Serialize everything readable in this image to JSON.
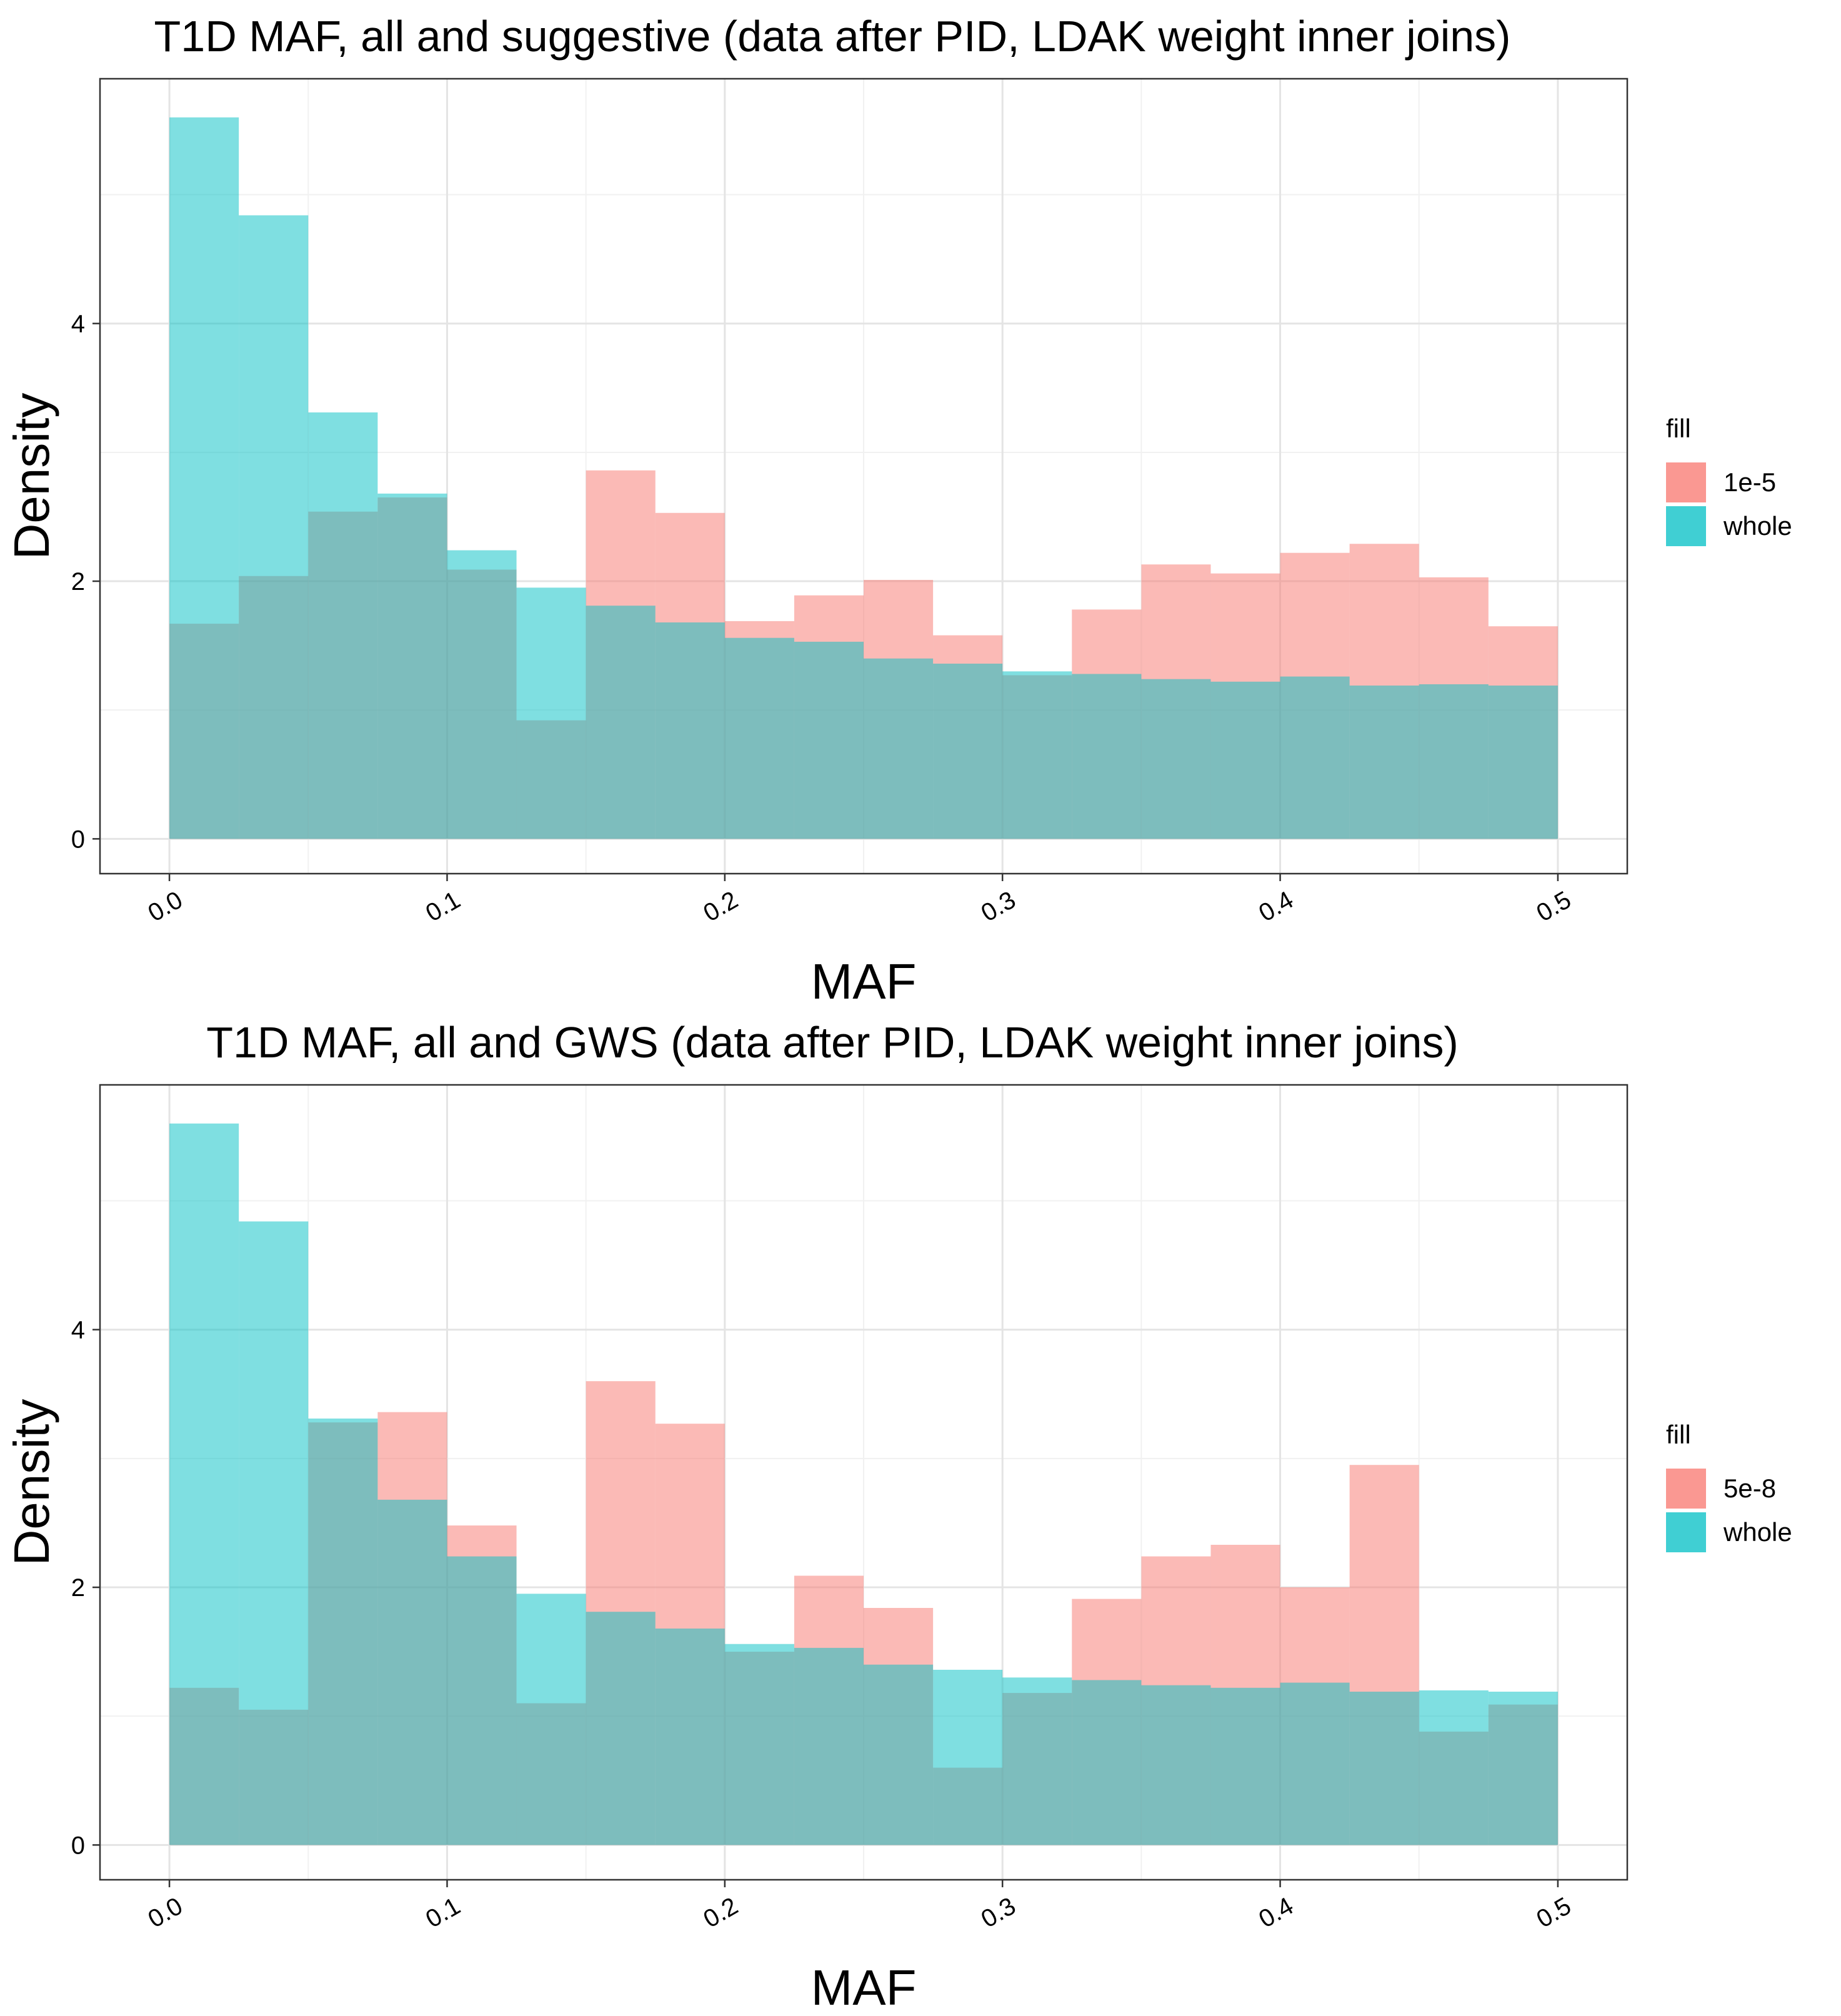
{
  "chart_data": [
    {
      "type": "histogram",
      "title": "T1D MAF, all and suggestive (data after PID, LDAK weight inner joins)",
      "xlabel": "MAF",
      "ylabel": "Density",
      "xlim": [
        -0.025,
        0.525
      ],
      "ylim": [
        -0.27,
        5.9
      ],
      "x_ticks": [
        "0.0",
        "0.1",
        "0.2",
        "0.3",
        "0.4",
        "0.5"
      ],
      "y_ticks": [
        "0",
        "2",
        "4"
      ],
      "bin_edges": [
        0,
        0.025,
        0.05,
        0.075,
        0.1,
        0.125,
        0.15,
        0.175,
        0.2,
        0.225,
        0.25,
        0.275,
        0.3,
        0.325,
        0.35,
        0.375,
        0.4,
        0.425,
        0.45,
        0.475,
        0.5
      ],
      "legend": {
        "title": "fill",
        "position": "right"
      },
      "series": [
        {
          "name": "1e-5",
          "color": "#F8766D",
          "values": [
            1.67,
            2.04,
            2.54,
            2.65,
            2.09,
            0.92,
            2.86,
            2.53,
            1.69,
            1.89,
            2.01,
            1.58,
            1.27,
            1.78,
            2.13,
            2.06,
            2.22,
            2.29,
            2.03,
            1.65
          ]
        },
        {
          "name": "whole",
          "color": "#00BFC4",
          "values": [
            5.6,
            4.84,
            3.31,
            2.68,
            2.24,
            1.95,
            1.81,
            1.68,
            1.56,
            1.53,
            1.4,
            1.36,
            1.3,
            1.28,
            1.24,
            1.22,
            1.26,
            1.19,
            1.2,
            1.19
          ]
        }
      ]
    },
    {
      "type": "histogram",
      "title": "T1D MAF, all and GWS (data after PID, LDAK weight inner joins)",
      "xlabel": "MAF",
      "ylabel": "Density",
      "xlim": [
        -0.025,
        0.525
      ],
      "ylim": [
        -0.27,
        5.9
      ],
      "x_ticks": [
        "0.0",
        "0.1",
        "0.2",
        "0.3",
        "0.4",
        "0.5"
      ],
      "y_ticks": [
        "0",
        "2",
        "4"
      ],
      "bin_edges": [
        0,
        0.025,
        0.05,
        0.075,
        0.1,
        0.125,
        0.15,
        0.175,
        0.2,
        0.225,
        0.25,
        0.275,
        0.3,
        0.325,
        0.35,
        0.375,
        0.4,
        0.425,
        0.45,
        0.475,
        0.5
      ],
      "legend": {
        "title": "fill",
        "position": "right"
      },
      "series": [
        {
          "name": "5e-8",
          "color": "#F8766D",
          "values": [
            1.22,
            1.05,
            3.28,
            3.36,
            2.48,
            1.1,
            3.6,
            3.27,
            1.5,
            2.09,
            1.84,
            0.6,
            1.18,
            1.91,
            2.24,
            2.33,
            2.0,
            2.95,
            0.88,
            1.09
          ]
        },
        {
          "name": "whole",
          "color": "#00BFC4",
          "values": [
            5.6,
            4.84,
            3.31,
            2.68,
            2.24,
            1.95,
            1.81,
            1.68,
            1.56,
            1.53,
            1.4,
            1.36,
            1.3,
            1.28,
            1.24,
            1.22,
            1.26,
            1.19,
            1.2,
            1.19
          ]
        }
      ]
    }
  ]
}
